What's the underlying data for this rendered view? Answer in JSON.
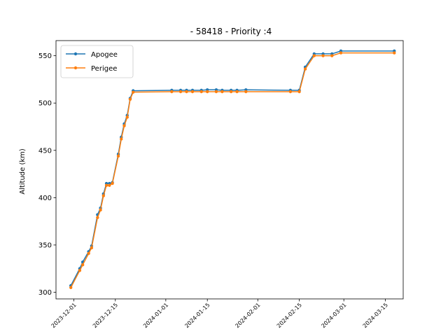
{
  "chart_data": {
    "type": "line",
    "title": "- 58418 - Priority :4",
    "xlabel": "",
    "ylabel": "Altitude (km)",
    "x_tick_labels": [
      "2023-12-01",
      "2023-12-15",
      "2024-01-01",
      "2024-01-15",
      "2024-02-01",
      "2024-02-15",
      "2024-03-01",
      "2024-03-15"
    ],
    "x_ticks": [
      "2023-12-01",
      "2023-12-15",
      "2024-01-01",
      "2024-01-15",
      "2024-02-01",
      "2024-02-15",
      "2024-03-01",
      "2024-03-15"
    ],
    "y_ticks": [
      300,
      350,
      400,
      450,
      500,
      550
    ],
    "xlim": [
      "2023-11-25",
      "2024-03-21"
    ],
    "ylim": [
      293,
      566
    ],
    "legend_position": "upper-left",
    "x": [
      "2023-11-30",
      "2023-12-03",
      "2023-12-04",
      "2023-12-06",
      "2023-12-07",
      "2023-12-09",
      "2023-12-10",
      "2023-12-11",
      "2023-12-12",
      "2023-12-13",
      "2023-12-14",
      "2023-12-16",
      "2023-12-17",
      "2023-12-18",
      "2023-12-19",
      "2023-12-20",
      "2023-12-21",
      "2024-01-03",
      "2024-01-06",
      "2024-01-08",
      "2024-01-10",
      "2024-01-13",
      "2024-01-15",
      "2024-01-18",
      "2024-01-20",
      "2024-01-23",
      "2024-01-25",
      "2024-01-28",
      "2024-02-12",
      "2024-02-15",
      "2024-02-17",
      "2024-02-20",
      "2024-02-23",
      "2024-02-26",
      "2024-02-29",
      "2024-03-18"
    ],
    "series": [
      {
        "name": "Apogee",
        "color": "#1f77b4",
        "values": [
          307,
          325,
          332,
          343,
          349,
          382,
          389,
          404,
          415,
          415,
          416,
          446,
          464,
          478,
          487,
          505,
          513,
          513.5,
          513.5,
          513.5,
          513.5,
          513.5,
          514,
          514,
          513.5,
          513.5,
          513.5,
          514,
          513.5,
          513.5,
          538,
          552,
          552,
          552,
          555,
          555
        ]
      },
      {
        "name": "Perigee",
        "color": "#ff7f0e",
        "values": [
          305,
          323,
          329,
          341,
          347,
          379,
          387,
          402,
          413,
          413,
          415,
          444,
          462,
          476,
          485,
          504,
          511.5,
          512,
          512,
          512,
          512,
          512,
          512,
          512,
          512,
          512,
          512,
          512,
          512,
          512,
          536,
          550,
          550,
          550,
          553,
          553
        ]
      }
    ]
  }
}
